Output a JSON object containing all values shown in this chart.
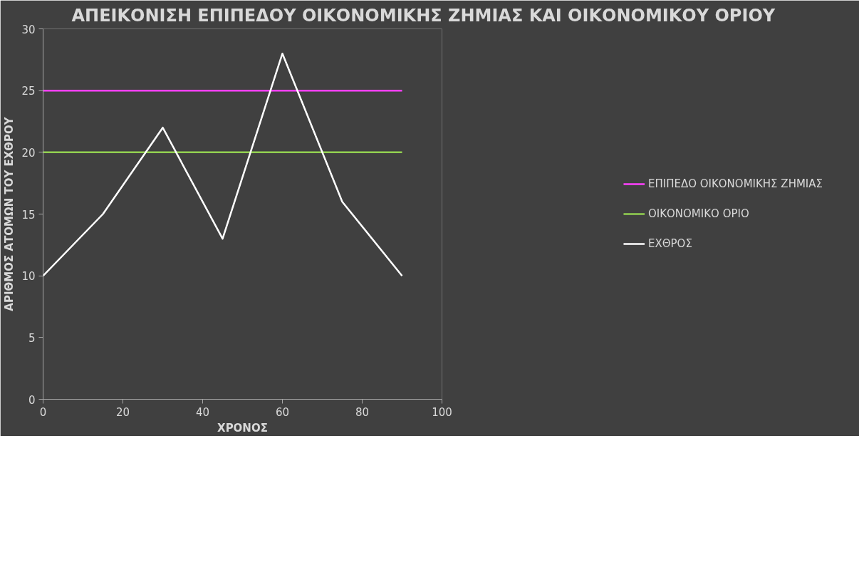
{
  "chart_data": {
    "type": "line",
    "title": "ΑΠΕΙΚΟΝΙΣΗ ΕΠΙΠΕΔΟΥ ΟΙΚΟΝΟΜΙΚΗΣ ΖΗΜΙΑΣ ΚΑΙ ΟΙΚΟΝΟΜΙΚΟΥ ΟΡΙΟΥ",
    "xlabel": "ΧΡΟΝΟΣ",
    "ylabel": "ΑΡΙΘΜΟΣ ΑΤΟΜΩΝ ΤΟΥ ΕΧΘΡΟΥ",
    "xlim": [
      0,
      100
    ],
    "xticks": [
      0,
      20,
      40,
      60,
      80,
      100
    ],
    "ylim": [
      0,
      30
    ],
    "yticks": [
      0,
      5,
      10,
      15,
      20,
      25,
      30
    ],
    "grid": false,
    "legend": "right",
    "series": [
      {
        "name": "ΕΠΙΠΕΔΟ ΟΙΚΟΝΟΜΙΚΗΣ ΖΗΜΙΑΣ",
        "color": "#ff40ff",
        "x": [
          0,
          90
        ],
        "values": [
          25,
          25
        ]
      },
      {
        "name": "ΟΙΚΟΝΟΜΙΚΟ ΟΡΙΟ",
        "color": "#92d050",
        "x": [
          0,
          90
        ],
        "values": [
          20,
          20
        ]
      },
      {
        "name": "ΕΧΘΡΟΣ",
        "color": "#ffffff",
        "x": [
          0,
          15,
          30,
          45,
          60,
          75,
          90
        ],
        "values": [
          10,
          15,
          22,
          13,
          28,
          16,
          10
        ]
      }
    ]
  }
}
